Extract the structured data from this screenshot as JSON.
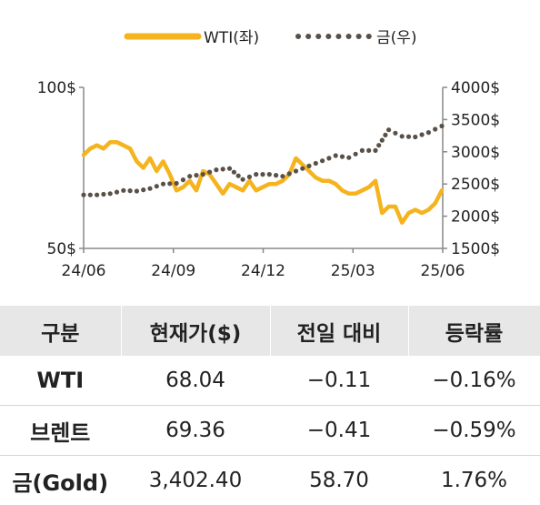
{
  "chart_data": {
    "type": "line",
    "legend": [
      {
        "label": "WTI(좌)",
        "color": "#f5b31e",
        "style": "solid"
      },
      {
        "label": "금(우)",
        "color": "#595048",
        "style": "dotted"
      }
    ],
    "x_tick_labels": [
      "24/06",
      "24/09",
      "24/12",
      "25/03",
      "25/06"
    ],
    "left_axis": {
      "ylim": [
        50,
        100
      ],
      "tick_labels": [
        "100$",
        "50$"
      ],
      "tick_values": [
        100,
        50
      ]
    },
    "right_axis": {
      "ylim": [
        1500,
        4000
      ],
      "tick_labels": [
        "4000$",
        "3500$",
        "3000$",
        "2500$",
        "2000$",
        "1500$"
      ],
      "tick_values": [
        4000,
        3500,
        3000,
        2500,
        2000,
        1500
      ]
    },
    "series": [
      {
        "name": "WTI(좌)",
        "axis": "left",
        "color": "#f5b31e",
        "points": [
          [
            "2024-06-01",
            79
          ],
          [
            "2024-06-08",
            81
          ],
          [
            "2024-06-15",
            82
          ],
          [
            "2024-06-22",
            81
          ],
          [
            "2024-06-29",
            83
          ],
          [
            "2024-07-06",
            83
          ],
          [
            "2024-07-13",
            82
          ],
          [
            "2024-07-20",
            81
          ],
          [
            "2024-07-27",
            77
          ],
          [
            "2024-08-03",
            75
          ],
          [
            "2024-08-10",
            78
          ],
          [
            "2024-08-17",
            74
          ],
          [
            "2024-08-24",
            77
          ],
          [
            "2024-08-31",
            73
          ],
          [
            "2024-09-07",
            68
          ],
          [
            "2024-09-14",
            69
          ],
          [
            "2024-09-21",
            71
          ],
          [
            "2024-09-28",
            68
          ],
          [
            "2024-10-05",
            74
          ],
          [
            "2024-10-12",
            73
          ],
          [
            "2024-10-19",
            70
          ],
          [
            "2024-10-26",
            67
          ],
          [
            "2024-11-02",
            70
          ],
          [
            "2024-11-09",
            69
          ],
          [
            "2024-11-16",
            68
          ],
          [
            "2024-11-23",
            71
          ],
          [
            "2024-11-30",
            68
          ],
          [
            "2024-12-07",
            69
          ],
          [
            "2024-12-14",
            70
          ],
          [
            "2024-12-21",
            70
          ],
          [
            "2024-12-28",
            71
          ],
          [
            "2025-01-04",
            73
          ],
          [
            "2025-01-11",
            78
          ],
          [
            "2025-01-18",
            76
          ],
          [
            "2025-01-25",
            74
          ],
          [
            "2025-02-01",
            72
          ],
          [
            "2025-02-08",
            71
          ],
          [
            "2025-02-15",
            71
          ],
          [
            "2025-02-22",
            70
          ],
          [
            "2025-03-01",
            68
          ],
          [
            "2025-03-08",
            67
          ],
          [
            "2025-03-15",
            67
          ],
          [
            "2025-03-22",
            68
          ],
          [
            "2025-03-29",
            69
          ],
          [
            "2025-04-05",
            71
          ],
          [
            "2025-04-12",
            61
          ],
          [
            "2025-04-19",
            63
          ],
          [
            "2025-04-26",
            63
          ],
          [
            "2025-05-03",
            58
          ],
          [
            "2025-05-10",
            61
          ],
          [
            "2025-05-17",
            62
          ],
          [
            "2025-05-24",
            61
          ],
          [
            "2025-05-31",
            62
          ],
          [
            "2025-06-07",
            64
          ],
          [
            "2025-06-14",
            68
          ]
        ]
      },
      {
        "name": "금(우)",
        "axis": "right",
        "color": "#595048",
        "points": [
          [
            "2024-06-01",
            2330
          ],
          [
            "2024-06-15",
            2330
          ],
          [
            "2024-06-29",
            2350
          ],
          [
            "2024-07-13",
            2400
          ],
          [
            "2024-07-27",
            2390
          ],
          [
            "2024-08-10",
            2430
          ],
          [
            "2024-08-24",
            2500
          ],
          [
            "2024-09-07",
            2510
          ],
          [
            "2024-09-21",
            2620
          ],
          [
            "2024-10-05",
            2650
          ],
          [
            "2024-10-19",
            2720
          ],
          [
            "2024-11-02",
            2740
          ],
          [
            "2024-11-16",
            2570
          ],
          [
            "2024-11-30",
            2650
          ],
          [
            "2024-12-14",
            2650
          ],
          [
            "2024-12-28",
            2620
          ],
          [
            "2025-01-11",
            2700
          ],
          [
            "2025-01-25",
            2780
          ],
          [
            "2025-02-08",
            2860
          ],
          [
            "2025-02-22",
            2940
          ],
          [
            "2025-03-08",
            2910
          ],
          [
            "2025-03-22",
            3020
          ],
          [
            "2025-04-05",
            3020
          ],
          [
            "2025-04-19",
            3340
          ],
          [
            "2025-05-03",
            3240
          ],
          [
            "2025-05-17",
            3230
          ],
          [
            "2025-05-31",
            3300
          ],
          [
            "2025-06-14",
            3400
          ]
        ]
      }
    ]
  },
  "table": {
    "headers": [
      "구분",
      "현재가($)",
      "전일 대비",
      "등락률"
    ],
    "rows": [
      {
        "name": "WTI",
        "price": "68.04",
        "change": "−0.11",
        "pct": "−0.16%"
      },
      {
        "name": "브렌트",
        "price": "69.36",
        "change": "−0.41",
        "pct": "−0.59%"
      },
      {
        "name": "금(Gold)",
        "price": "3,402.40",
        "change": "58.70",
        "pct": "1.76%"
      }
    ]
  }
}
